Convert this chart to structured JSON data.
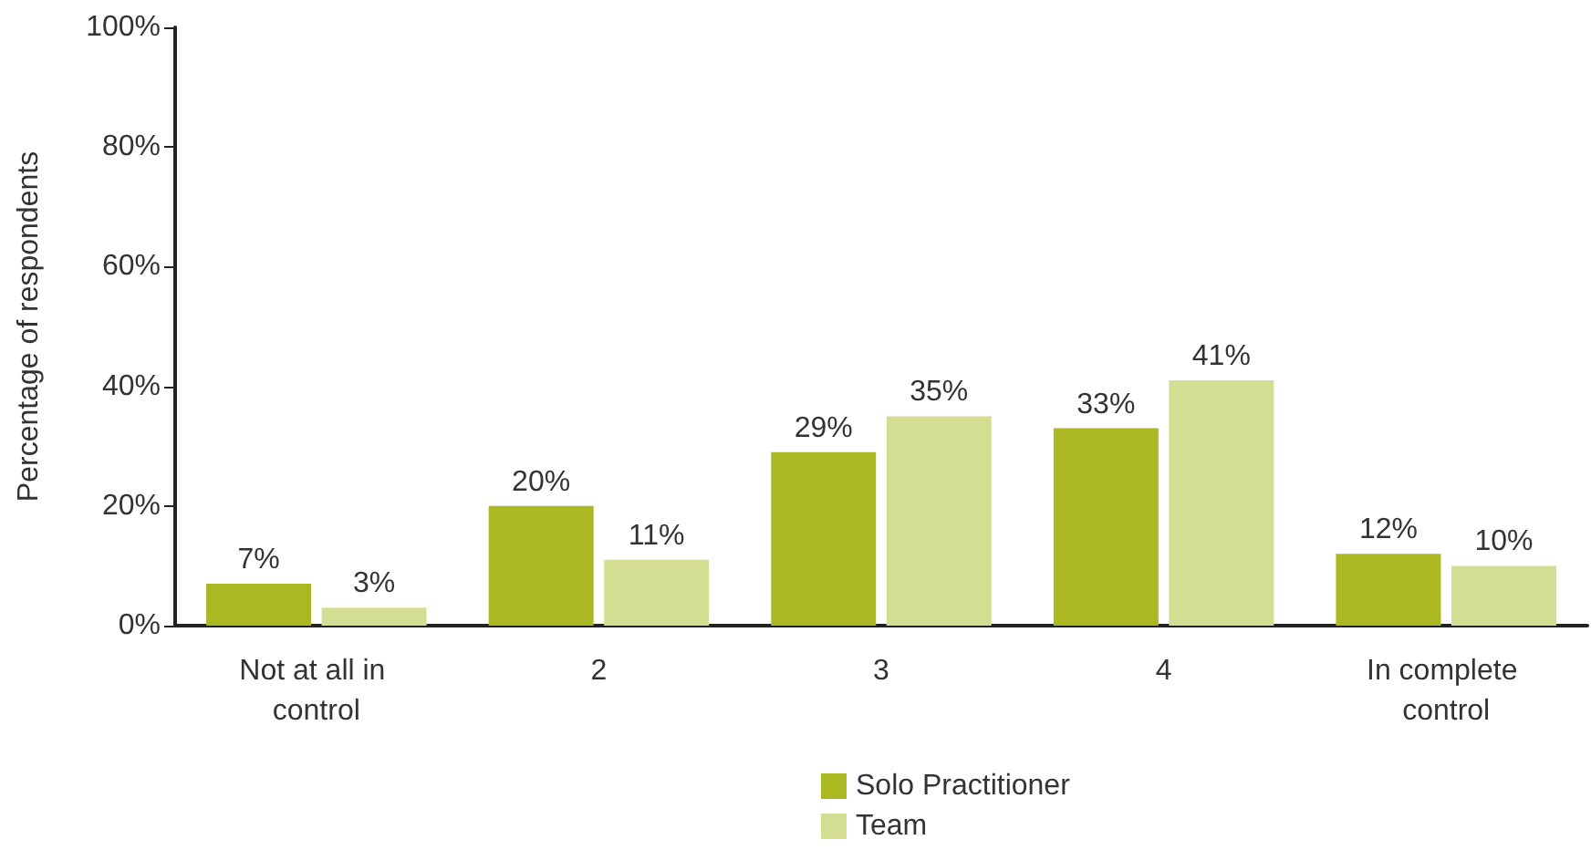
{
  "chart_data": {
    "type": "bar",
    "ylabel": "Percentage of respondents",
    "categories": [
      "Not at all in control",
      "2",
      "3",
      "4",
      "In complete control"
    ],
    "series": [
      {
        "name": "Solo Practitioner",
        "color": "#aab822",
        "values": [
          7,
          20,
          29,
          33,
          12
        ],
        "value_labels": [
          "7%",
          "20%",
          "29%",
          "33%",
          "12%"
        ]
      },
      {
        "name": "Team",
        "color": "#d4de92",
        "values": [
          3,
          11,
          35,
          41,
          10
        ],
        "value_labels": [
          "3%",
          "11%",
          "35%",
          "41%",
          "10%"
        ]
      }
    ],
    "ylim": [
      0,
      100
    ],
    "yticks": [
      {
        "value": 0,
        "label": "0%"
      },
      {
        "value": 20,
        "label": "20%"
      },
      {
        "value": 40,
        "label": "40%"
      },
      {
        "value": 60,
        "label": "60%"
      },
      {
        "value": 80,
        "label": "80%"
      },
      {
        "value": 100,
        "label": "100%"
      }
    ],
    "grid": false,
    "legend": "bottom"
  }
}
